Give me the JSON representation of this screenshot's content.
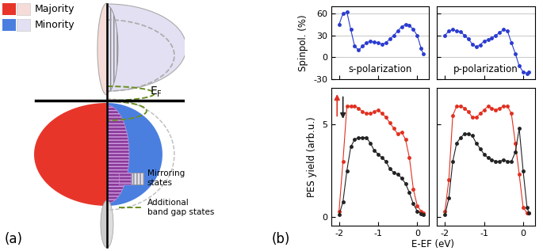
{
  "figure": {
    "panel_labels": [
      "(a)",
      "(b)"
    ],
    "xlabel": "E-EF (eV)"
  },
  "diagram": {
    "legend": [
      {
        "label": "Majority",
        "colors": [
          "#e8352a",
          "#f6dcd8"
        ]
      },
      {
        "label": "Minority",
        "colors": [
          "#4a7fe0",
          "#e2e0f2"
        ]
      }
    ],
    "fermi_label": {
      "main": "E",
      "sub": "F"
    },
    "mirroring_label": "Mirroring states",
    "bandgap_label": "Additional band gap states"
  },
  "chart_data": [
    {
      "type": "line",
      "ylabel": "Spinpol. (%)",
      "annotation": "s-polarization",
      "x": [
        -2.0,
        -1.9,
        -1.8,
        -1.7,
        -1.6,
        -1.5,
        -1.4,
        -1.3,
        -1.2,
        -1.1,
        -1.0,
        -0.9,
        -0.8,
        -0.7,
        -0.6,
        -0.5,
        -0.4,
        -0.3,
        -0.2,
        -0.1,
        0.0,
        0.1,
        0.15
      ],
      "series": [
        {
          "color": "#2a3bd0",
          "marker": "o",
          "line_style": "solid",
          "values": [
            45,
            60,
            62,
            38,
            15,
            10,
            15,
            20,
            22,
            21,
            20,
            18,
            20,
            25,
            30,
            36,
            42,
            45,
            44,
            38,
            30,
            12,
            5
          ]
        }
      ],
      "xlim": [
        -2.2,
        0.3
      ],
      "xticks": [
        -2,
        -1,
        0
      ],
      "ylim": [
        -30,
        70
      ],
      "yticks": [
        -30,
        0,
        30,
        60
      ],
      "grid": true,
      "tick_labels": "y"
    },
    {
      "type": "line",
      "annotation": "p-polarization",
      "x": [
        -2.0,
        -1.9,
        -1.8,
        -1.7,
        -1.6,
        -1.5,
        -1.4,
        -1.3,
        -1.2,
        -1.1,
        -1.0,
        -0.9,
        -0.8,
        -0.7,
        -0.6,
        -0.5,
        -0.4,
        -0.3,
        -0.2,
        -0.1,
        0.0,
        0.1,
        0.15
      ],
      "series": [
        {
          "color": "#2a3bd0",
          "marker": "o",
          "line_style": "solid",
          "values": [
            30,
            36,
            38,
            36,
            35,
            30,
            25,
            18,
            14,
            17,
            22,
            24,
            26,
            30,
            34,
            38,
            36,
            20,
            5,
            -12,
            -20,
            -22,
            -20
          ]
        }
      ],
      "xlim": [
        -2.2,
        0.3
      ],
      "xticks": [
        -2,
        -1,
        0
      ],
      "ylim": [
        -30,
        70
      ],
      "yticks": [
        -30,
        0,
        30,
        60
      ],
      "grid": true,
      "tick_labels": false
    },
    {
      "type": "line",
      "ylabel": "PES yield (arb.u.)",
      "x": [
        -2.0,
        -1.9,
        -1.8,
        -1.7,
        -1.6,
        -1.5,
        -1.4,
        -1.3,
        -1.2,
        -1.1,
        -1.0,
        -0.9,
        -0.8,
        -0.7,
        -0.6,
        -0.5,
        -0.4,
        -0.3,
        -0.2,
        -0.1,
        0.0,
        0.1,
        0.15
      ],
      "series": [
        {
          "color": "#e03020",
          "marker": "o",
          "line_style": "solid",
          "values": [
            0.3,
            3,
            6,
            6,
            6,
            5.9,
            5.7,
            5.6,
            5.6,
            5.7,
            5.8,
            5.6,
            5.4,
            5.1,
            4.8,
            4.5,
            4.6,
            4.2,
            3.2,
            1.5,
            0.6,
            0.3,
            0.2
          ]
        },
        {
          "color": "#222222",
          "marker": "o",
          "line_style": "solid",
          "values": [
            0.1,
            0.8,
            2.5,
            3.8,
            4.2,
            4.3,
            4.3,
            4.3,
            4.0,
            3.6,
            3.4,
            3.2,
            3.0,
            2.6,
            2.4,
            2.3,
            2.1,
            1.8,
            1.3,
            0.7,
            0.3,
            0.15,
            0.1
          ]
        }
      ],
      "xlim": [
        -2.2,
        0.3
      ],
      "xticks": [
        -2,
        -1,
        0
      ],
      "ylim": [
        -0.5,
        7
      ],
      "yticks": [
        0,
        5
      ],
      "grid": false
    },
    {
      "type": "line",
      "x": [
        -2.0,
        -1.9,
        -1.8,
        -1.7,
        -1.6,
        -1.5,
        -1.4,
        -1.3,
        -1.2,
        -1.1,
        -1.0,
        -0.9,
        -0.8,
        -0.7,
        -0.6,
        -0.5,
        -0.4,
        -0.3,
        -0.2,
        -0.1,
        0.0,
        0.1,
        0.15
      ],
      "series": [
        {
          "color": "#e03020",
          "marker": "o",
          "line_style": "solid",
          "values": [
            0.3,
            2,
            5.5,
            6,
            6,
            5.9,
            5.7,
            5.4,
            5.4,
            5.6,
            5.8,
            6,
            5.9,
            5.8,
            5.9,
            6,
            6,
            5.6,
            4,
            2.3,
            0.5,
            0.2,
            0.2
          ]
        },
        {
          "color": "#222222",
          "marker": "o",
          "line_style": "solid",
          "values": [
            0.1,
            1,
            3,
            4,
            4.3,
            4.5,
            4.5,
            4.4,
            4.0,
            3.7,
            3.4,
            3.2,
            3.1,
            3,
            3,
            3.1,
            3,
            3,
            3.5,
            4.8,
            2.5,
            0.5,
            0.2
          ]
        }
      ],
      "xlim": [
        -2.2,
        0.3
      ],
      "xticks": [
        -2,
        -1,
        0
      ],
      "ylim": [
        -0.5,
        7
      ],
      "yticks": [
        0,
        5
      ],
      "grid": false,
      "tick_labels": "x"
    }
  ]
}
